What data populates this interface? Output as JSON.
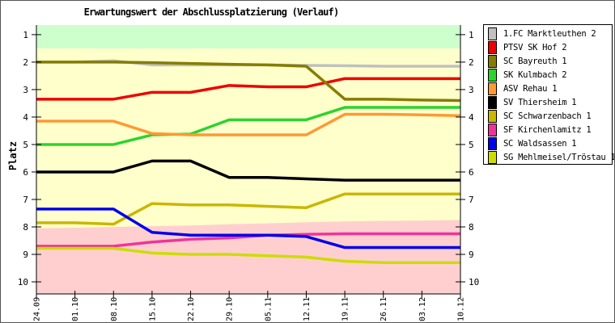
{
  "chart_data": {
    "type": "line",
    "title": "Erwartungswert der Abschlussplatzierung (Verlauf)",
    "ylabel": "Platz",
    "y_axis_inverted": true,
    "ylim": [
      0.65,
      10.44
    ],
    "y_ticks": [
      1,
      2,
      3,
      4,
      5,
      6,
      7,
      8,
      9,
      10
    ],
    "legend_position": "top-right",
    "grid": false,
    "x": [
      "24.09",
      "01.10",
      "08.10",
      "15.10",
      "22.10",
      "29.10",
      "05.11",
      "12.11",
      "19.11",
      "26.11",
      "03.12",
      "10.12"
    ],
    "series": [
      {
        "id": "marktleuthen",
        "name": "1.FC Marktleuthen 2",
        "color": "#C0C0C0",
        "values": [
          2.0,
          2.0,
          1.95,
          2.1,
          2.1,
          2.1,
          2.1,
          2.12,
          2.13,
          2.15,
          2.15,
          2.15
        ]
      },
      {
        "id": "hof",
        "name": "PTSV SK Hof 2",
        "color": "#EE0000",
        "values": [
          3.35,
          3.35,
          3.35,
          3.1,
          3.1,
          2.85,
          2.9,
          2.9,
          2.6,
          2.6,
          2.6,
          2.6
        ]
      },
      {
        "id": "bayreuth",
        "name": "SC Bayreuth 1",
        "color": "#857D00",
        "values": [
          2.0,
          2.0,
          2.0,
          2.02,
          2.05,
          2.08,
          2.1,
          2.15,
          3.35,
          3.35,
          3.38,
          3.4
        ]
      },
      {
        "id": "kulmbach",
        "name": "SK Kulmbach 2",
        "color": "#2BD42B",
        "values": [
          5.0,
          5.0,
          5.0,
          4.65,
          4.62,
          4.1,
          4.1,
          4.1,
          3.65,
          3.65,
          3.65,
          3.65
        ]
      },
      {
        "id": "rehau",
        "name": "ASV Rehau 1",
        "color": "#FF9933",
        "values": [
          4.15,
          4.15,
          4.15,
          4.6,
          4.65,
          4.65,
          4.65,
          4.65,
          3.9,
          3.9,
          3.92,
          3.95
        ]
      },
      {
        "id": "thiersheim",
        "name": "SV Thiersheim 1",
        "color": "#000000",
        "values": [
          6.0,
          6.0,
          6.0,
          5.6,
          5.6,
          6.2,
          6.2,
          6.25,
          6.3,
          6.3,
          6.3,
          6.3
        ]
      },
      {
        "id": "schwarzenbach",
        "name": "SC Schwarzenbach 1",
        "color": "#C9B700",
        "values": [
          7.85,
          7.85,
          7.9,
          7.15,
          7.2,
          7.2,
          7.25,
          7.3,
          6.8,
          6.8,
          6.8,
          6.8
        ]
      },
      {
        "id": "kirchenlamitz",
        "name": "SF Kirchenlamitz 1",
        "color": "#F03399",
        "values": [
          8.7,
          8.7,
          8.7,
          8.55,
          8.45,
          8.4,
          8.3,
          8.27,
          8.25,
          8.25,
          8.25,
          8.25
        ]
      },
      {
        "id": "waldsassen",
        "name": "SC Waldsassen 1",
        "color": "#0000EE",
        "values": [
          7.35,
          7.35,
          7.35,
          8.2,
          8.3,
          8.3,
          8.3,
          8.35,
          8.75,
          8.75,
          8.75,
          8.75
        ]
      },
      {
        "id": "mehlmeisel",
        "name": "SG Mehlmeisel/Tröstau 1",
        "color": "#CCDD00",
        "values": [
          8.78,
          8.78,
          8.78,
          8.95,
          9.0,
          9.0,
          9.05,
          9.1,
          9.25,
          9.3,
          9.3,
          9.3
        ]
      }
    ],
    "zones": [
      {
        "name": "aufstieg",
        "color": "#CCFFCC",
        "from": 0.65,
        "to": 1.5
      },
      {
        "name": "mittelfeld",
        "color": "#FFFFCC",
        "from": 1.5,
        "to": 10.44
      },
      {
        "name": "abstieg",
        "color": "#FFCFCF",
        "to": 10.44,
        "boundary": [
          8.05,
          8.03,
          8.0,
          7.97,
          7.95,
          7.9,
          7.87,
          7.83,
          7.8,
          7.78,
          7.77,
          7.75
        ]
      }
    ]
  }
}
